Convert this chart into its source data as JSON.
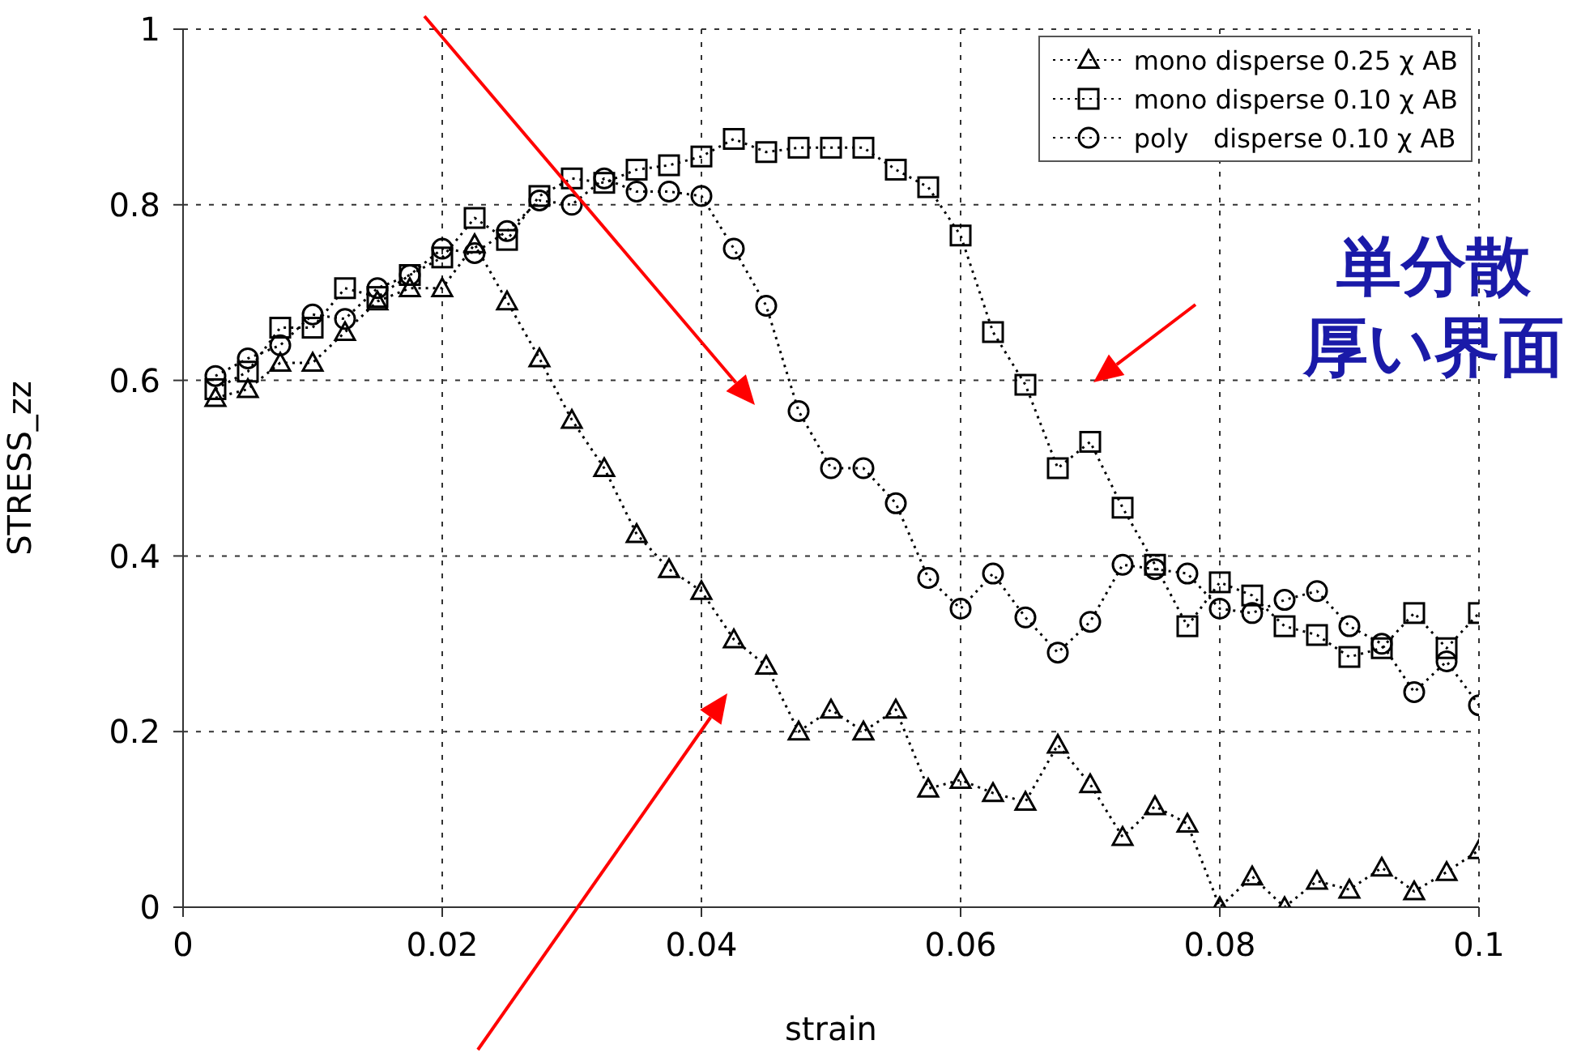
{
  "chart_data": {
    "type": "line",
    "xlabel": "strain",
    "ylabel": "STRESS_zz",
    "x": [
      0.0025,
      0.005,
      0.0075,
      0.01,
      0.0125,
      0.015,
      0.0175,
      0.02,
      0.0225,
      0.025,
      0.0275,
      0.03,
      0.0325,
      0.035,
      0.0375,
      0.04,
      0.0425,
      0.045,
      0.0475,
      0.05,
      0.0525,
      0.055,
      0.0575,
      0.06,
      0.0625,
      0.065,
      0.0675,
      0.07,
      0.0725,
      0.075,
      0.0775,
      0.08,
      0.0825,
      0.085,
      0.0875,
      0.09,
      0.0925,
      0.095,
      0.0975,
      0.1
    ],
    "series": [
      {
        "name": "mono disperse 0.25 χ AB",
        "color": "#000000",
        "marker": "triangle",
        "values": [
          0.58,
          0.59,
          0.62,
          0.62,
          0.655,
          0.69,
          0.705,
          0.705,
          0.755,
          0.69,
          0.625,
          0.555,
          0.5,
          0.425,
          0.385,
          0.36,
          0.305,
          0.275,
          0.2,
          0.225,
          0.2,
          0.225,
          0.135,
          0.145,
          0.13,
          0.12,
          0.185,
          0.14,
          0.08,
          0.115,
          0.095,
          0,
          0.035,
          0,
          0.03,
          0.02,
          0.045,
          0.018,
          0.04,
          0.065
        ]
      },
      {
        "name": "mono disperse 0.10 χ AB",
        "color": "#000000",
        "marker": "square",
        "values": [
          0.59,
          0.61,
          0.66,
          0.66,
          0.705,
          0.695,
          0.72,
          0.74,
          0.785,
          0.76,
          0.81,
          0.83,
          0.825,
          0.84,
          0.845,
          0.855,
          0.875,
          0.86,
          0.865,
          0.865,
          0.865,
          0.84,
          0.82,
          0.765,
          0.655,
          0.595,
          0.5,
          0.53,
          0.455,
          0.39,
          0.32,
          0.37,
          0.355,
          0.32,
          0.31,
          0.285,
          0.295,
          0.335,
          0.295,
          0.335
        ]
      },
      {
        "name": "poly   disperse 0.10 χ AB",
        "color": "#000000",
        "marker": "circle",
        "values": [
          0.605,
          0.625,
          0.64,
          0.675,
          0.67,
          0.705,
          0.72,
          0.75,
          0.745,
          0.77,
          0.805,
          0.8,
          0.83,
          0.815,
          0.815,
          0.81,
          0.75,
          0.685,
          0.565,
          0.5,
          0.5,
          0.46,
          0.375,
          0.34,
          0.38,
          0.33,
          0.29,
          0.325,
          0.39,
          0.385,
          0.38,
          0.34,
          0.335,
          0.35,
          0.36,
          0.32,
          0.3,
          0.245,
          0.28,
          0.23
        ]
      }
    ],
    "xlim": [
      0,
      0.1
    ],
    "xticks": [
      0,
      0.02,
      0.04,
      0.06,
      0.08,
      0.1
    ],
    "ylim": [
      0,
      1
    ],
    "yticks": [
      0,
      0.2,
      0.4,
      0.6,
      0.8,
      1
    ],
    "grid": true,
    "legend": "top right",
    "line_style": "dotted",
    "annotations": [
      "単分散",
      "厚い界面"
    ]
  }
}
